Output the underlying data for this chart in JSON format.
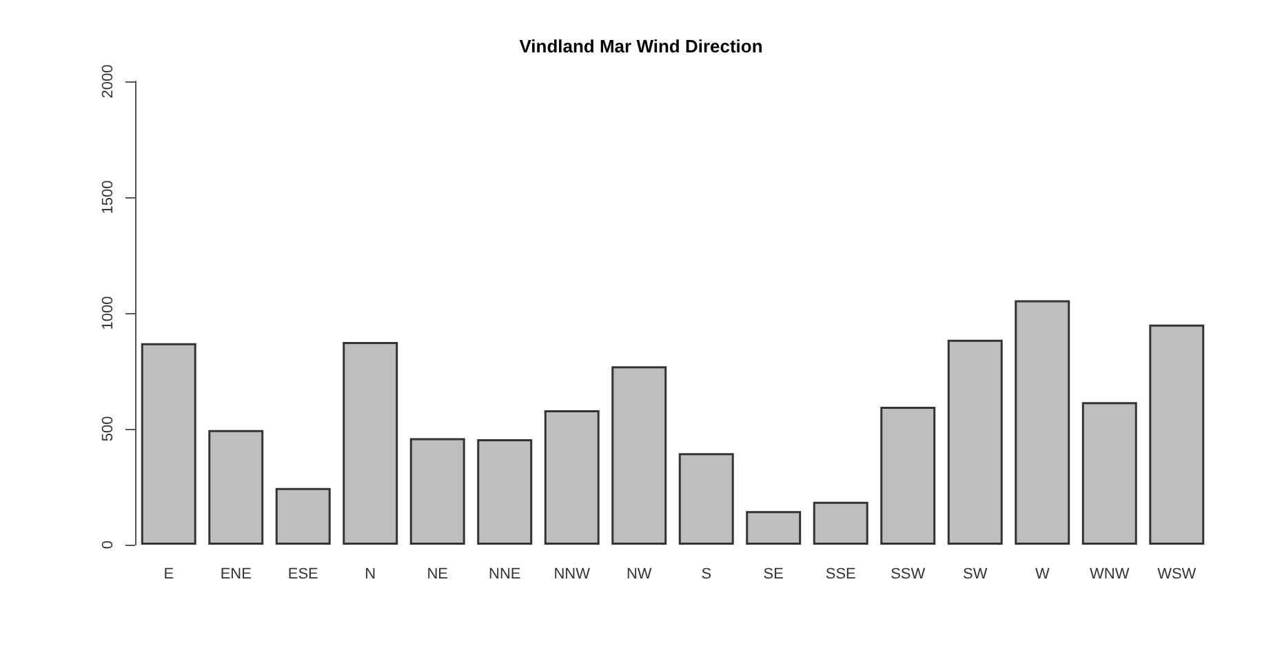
{
  "chart_data": {
    "type": "bar",
    "title": "Vindland Mar Wind Direction",
    "categories": [
      "E",
      "ENE",
      "ESE",
      "N",
      "NE",
      "NNE",
      "NNW",
      "NW",
      "S",
      "SE",
      "SSE",
      "SSW",
      "SW",
      "W",
      "WNW",
      "WSW"
    ],
    "values": [
      870,
      495,
      245,
      875,
      460,
      455,
      580,
      770,
      395,
      145,
      185,
      595,
      885,
      1055,
      615,
      950
    ],
    "color": "#bebebe",
    "ylim": [
      0,
      2000
    ],
    "yticks": [
      0,
      500,
      1000,
      1500,
      2000
    ],
    "grid": false
  }
}
